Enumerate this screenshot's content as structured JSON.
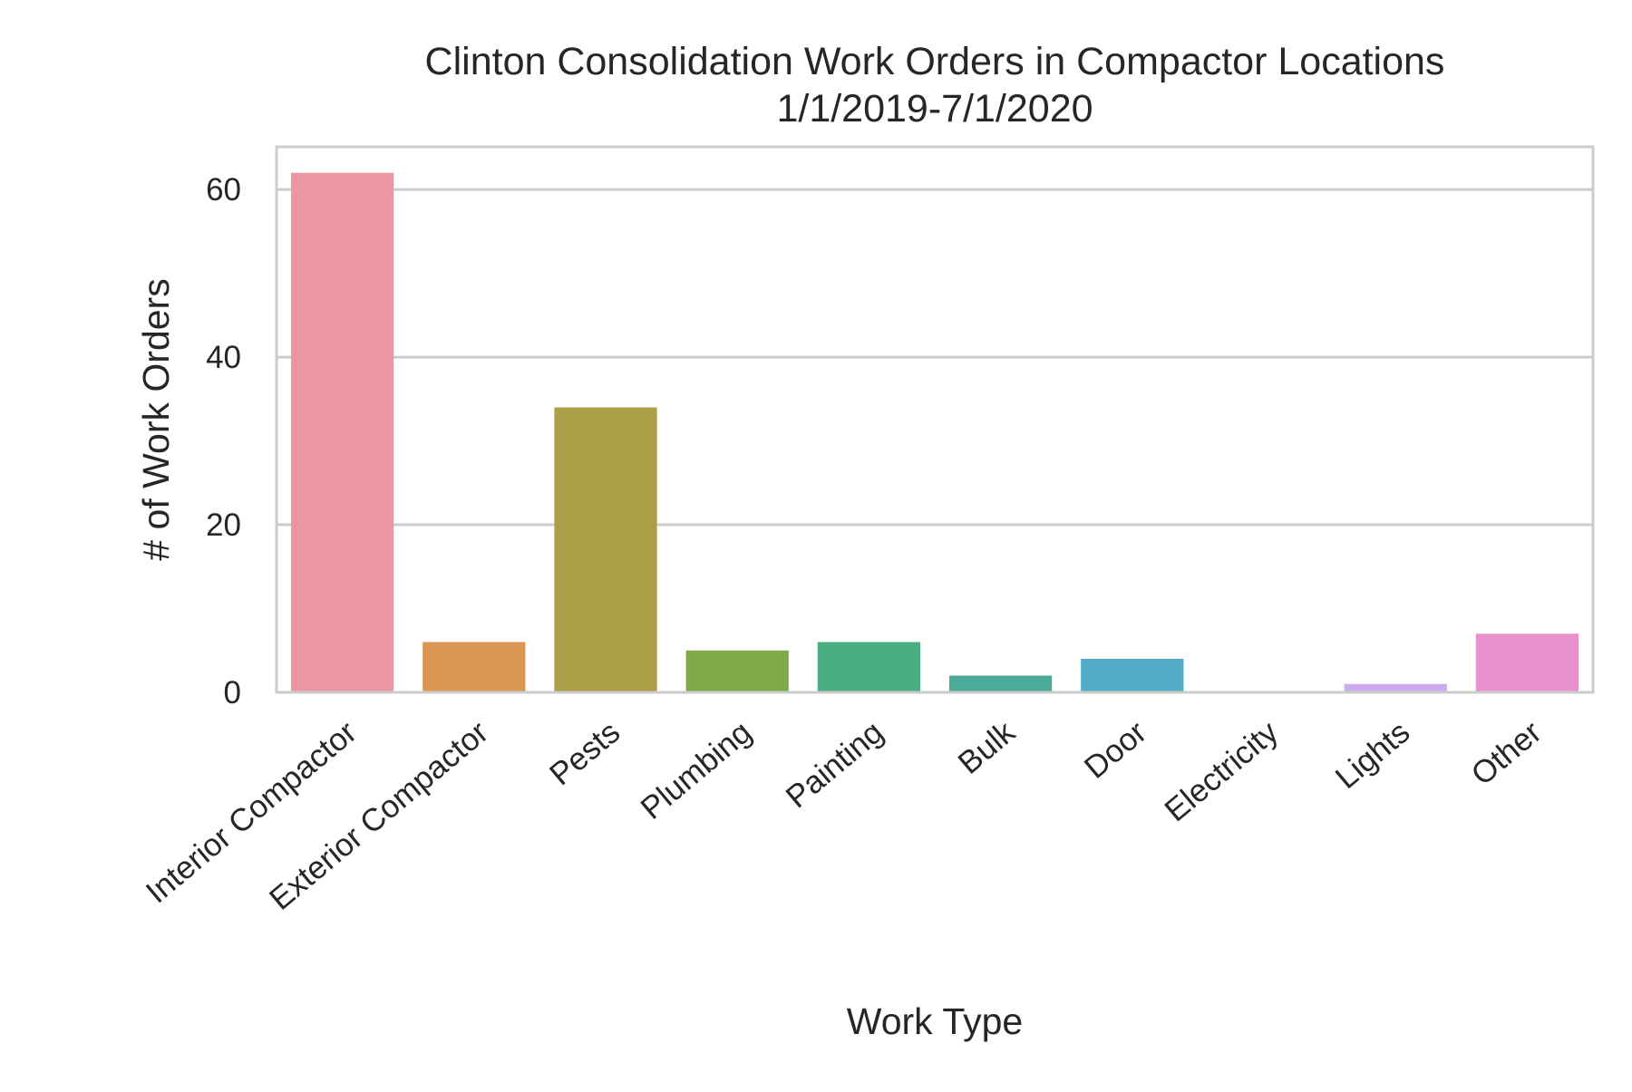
{
  "chart_data": {
    "type": "bar",
    "title_lines": [
      "Clinton Consolidation Work Orders in Compactor Locations",
      "1/1/2019-7/1/2020"
    ],
    "xlabel": "Work Type",
    "ylabel": "# of Work Orders",
    "categories": [
      "Interior Compactor",
      "Exterior Compactor",
      "Pests",
      "Plumbing",
      "Painting",
      "Bulk",
      "Door",
      "Electricity",
      "Lights",
      "Other"
    ],
    "values": [
      62,
      6,
      34,
      5,
      6,
      2,
      4,
      0,
      1,
      7
    ],
    "colors": [
      "#ea96a3",
      "#d99551",
      "#aa9e47",
      "#80a949",
      "#4bae80",
      "#4cab98",
      "#50acc7",
      "#9bb5e6",
      "#cbaaf0",
      "#e991cc"
    ],
    "yticks": [
      0,
      20,
      40,
      60
    ],
    "ylim": [
      0,
      65.1
    ],
    "grid": true,
    "grid_axis": "y"
  }
}
